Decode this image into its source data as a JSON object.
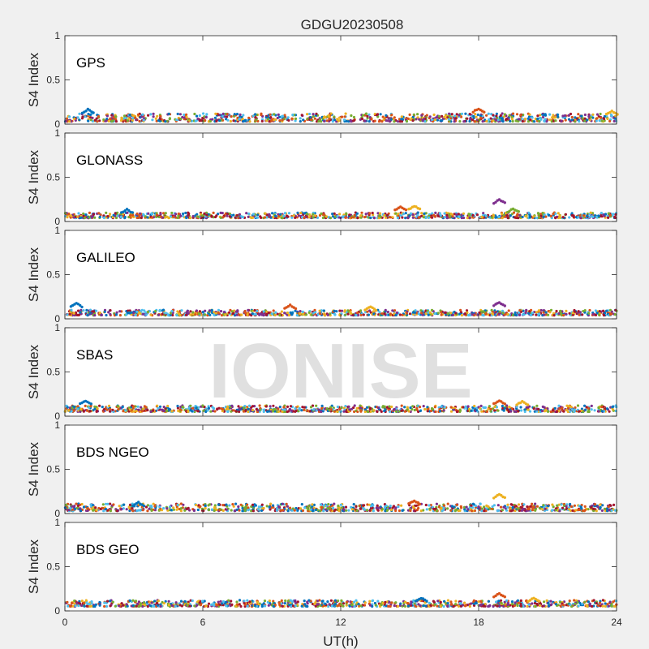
{
  "chart_data": {
    "type": "scatter",
    "title": "GDGU20230508",
    "xlabel": "UT(h)",
    "ylabel": "S4 Index",
    "xlim": [
      0,
      24
    ],
    "ylim": [
      0,
      1
    ],
    "x_ticks": [
      "0",
      "6",
      "12",
      "18",
      "24"
    ],
    "y_ticks": [
      "0",
      "0.5",
      "1"
    ],
    "watermark": "IONISE",
    "watermark_color": "#c8c8c8",
    "series_colors": [
      "#0072bd",
      "#d95319",
      "#edb120",
      "#7e2f8e",
      "#77ac30",
      "#4dbeee",
      "#a2142f"
    ],
    "panels": [
      {
        "name": "GPS",
        "baseline_range": [
          0.03,
          0.12
        ],
        "features": [
          {
            "x": 1.0,
            "y": 0.17
          },
          {
            "x": 18.0,
            "y": 0.18
          },
          {
            "x": 23.8,
            "y": 0.15
          }
        ]
      },
      {
        "name": "GLONASS",
        "baseline_range": [
          0.04,
          0.1
        ],
        "features": [
          {
            "x": 2.7,
            "y": 0.14
          },
          {
            "x": 14.6,
            "y": 0.17
          },
          {
            "x": 15.2,
            "y": 0.18
          },
          {
            "x": 18.9,
            "y": 0.25
          },
          {
            "x": 19.5,
            "y": 0.15
          }
        ]
      },
      {
        "name": "GALILEO",
        "baseline_range": [
          0.04,
          0.1
        ],
        "features": [
          {
            "x": 0.5,
            "y": 0.18
          },
          {
            "x": 9.8,
            "y": 0.16
          },
          {
            "x": 13.3,
            "y": 0.14
          },
          {
            "x": 18.9,
            "y": 0.19
          }
        ]
      },
      {
        "name": "SBAS",
        "baseline_range": [
          0.05,
          0.12
        ],
        "features": [
          {
            "x": 0.9,
            "y": 0.18
          },
          {
            "x": 18.9,
            "y": 0.18
          },
          {
            "x": 19.9,
            "y": 0.17
          }
        ]
      },
      {
        "name": "BDS NGEO",
        "baseline_range": [
          0.03,
          0.11
        ],
        "features": [
          {
            "x": 3.2,
            "y": 0.13
          },
          {
            "x": 15.2,
            "y": 0.15
          },
          {
            "x": 18.9,
            "y": 0.22
          }
        ]
      },
      {
        "name": "BDS GEO",
        "baseline_range": [
          0.05,
          0.12
        ],
        "features": [
          {
            "x": 15.5,
            "y": 0.15
          },
          {
            "x": 18.9,
            "y": 0.2
          },
          {
            "x": 20.4,
            "y": 0.15
          }
        ]
      }
    ]
  }
}
